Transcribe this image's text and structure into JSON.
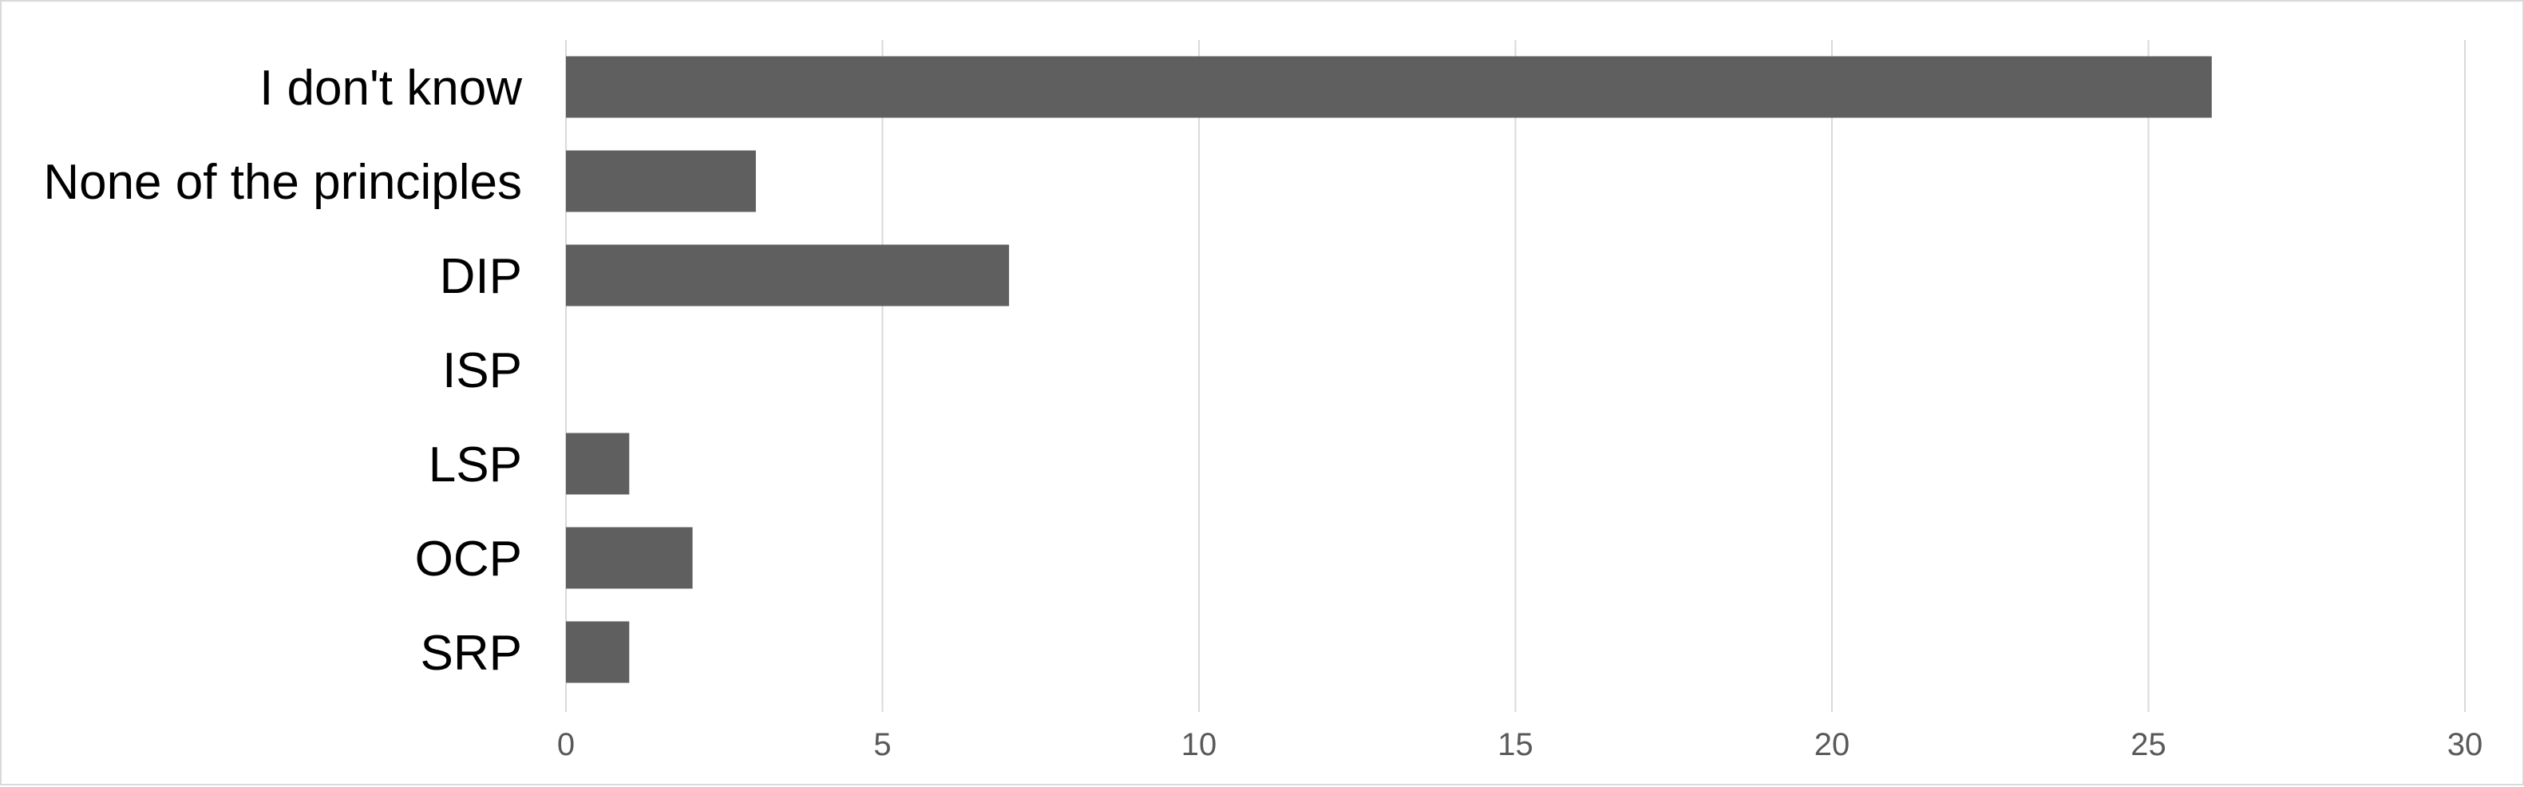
{
  "chart_data": {
    "type": "bar",
    "orientation": "horizontal",
    "categories": [
      "I don't know",
      "None of the principles",
      "DIP",
      "ISP",
      "LSP",
      "OCP",
      "SRP"
    ],
    "values": [
      26,
      3,
      7,
      0,
      1,
      2,
      1
    ],
    "title": "",
    "xlabel": "",
    "ylabel": "",
    "xlim": [
      0,
      30
    ],
    "x_ticks": [
      0,
      5,
      10,
      15,
      20,
      25,
      30
    ],
    "grid": "vertical",
    "legend": "none",
    "bar_color": "#5f5f5f",
    "grid_color": "#d9d9d9"
  }
}
